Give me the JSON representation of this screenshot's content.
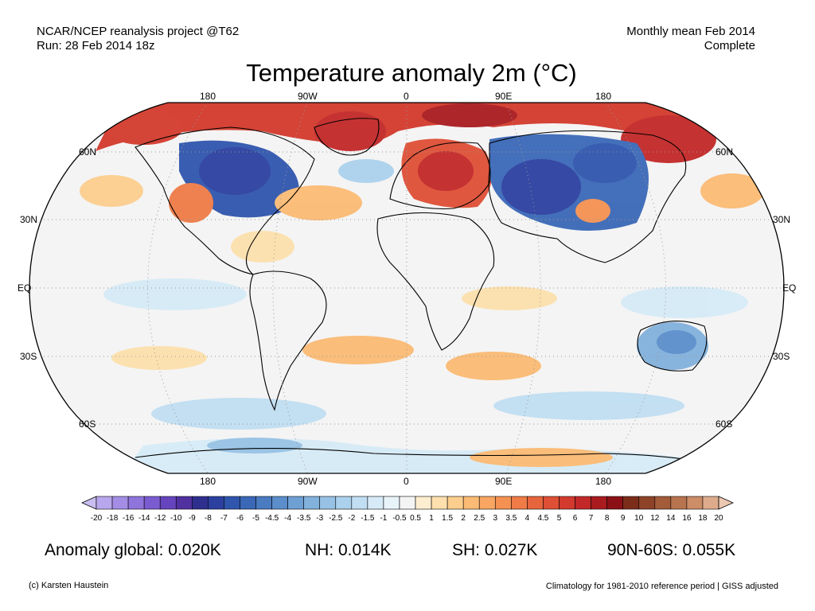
{
  "header": {
    "source_line": "NCAR/NCEP reanalysis project @T62",
    "run_line": "Run: 28 Feb 2014 18z",
    "period_line": "Monthly mean Feb 2014",
    "status_line": "Complete"
  },
  "title": "Temperature anomaly 2m (°C)",
  "map": {
    "projection": "Robinson",
    "lon_labels_top": [
      "180",
      "90W",
      "0",
      "90E",
      "180"
    ],
    "lon_labels_bottom": [
      "180",
      "90W",
      "0",
      "90E",
      "180"
    ],
    "lat_labels_left": [
      "60N",
      "30N",
      "EQ",
      "30S",
      "60S"
    ],
    "lat_labels_right": [
      "60N",
      "30N",
      "EQ",
      "30S",
      "60S"
    ],
    "ocean_color": "#f4f4f4",
    "land_border_color": "#000000",
    "anomaly_regions": [
      {
        "region": "Arctic / Greenland",
        "sign": "warm",
        "color": "#c8201e"
      },
      {
        "region": "Europe",
        "sign": "warm",
        "color": "#d2392c"
      },
      {
        "region": "Alaska / Bering",
        "sign": "warm",
        "color": "#b5241a"
      },
      {
        "region": "Central & eastern North America",
        "sign": "cold",
        "color": "#2f4ea0"
      },
      {
        "region": "Siberia / Central Asia",
        "sign": "cold",
        "color": "#2b4b9d"
      },
      {
        "region": "Western United States",
        "sign": "warm",
        "color": "#f08a52"
      },
      {
        "region": "Australia",
        "sign": "cold",
        "color": "#5d8ec9"
      },
      {
        "region": "Antarctic coast (Pacific sector)",
        "sign": "warm",
        "color": "#f5b77a"
      }
    ]
  },
  "colorbar": {
    "labels": [
      "-20",
      "-18",
      "-16",
      "-14",
      "-12",
      "-10",
      "-9",
      "-8",
      "-7",
      "-6",
      "-5",
      "-4.5",
      "-4",
      "-3.5",
      "-3",
      "-2.5",
      "-2",
      "-1.5",
      "-1",
      "-0.5",
      "0.5",
      "1",
      "1.5",
      "2",
      "2.5",
      "3",
      "3.5",
      "4",
      "4.5",
      "5",
      "6",
      "7",
      "8",
      "9",
      "10",
      "12",
      "14",
      "16",
      "18",
      "20"
    ],
    "colors": [
      "#c9bdf1",
      "#b8a7ec",
      "#a48ee5",
      "#8f74dc",
      "#7a5bd0",
      "#6644bd",
      "#50319f",
      "#2f2f8f",
      "#2c40a0",
      "#2f55ad",
      "#3a68b7",
      "#4a7bc1",
      "#5b8ecb",
      "#6ea0d4",
      "#82b1dc",
      "#97c2e5",
      "#abd1ec",
      "#c1def2",
      "#d6ebf7",
      "#e8f3fa",
      "#f4f4f4",
      "#fdeed0",
      "#fde0ad",
      "#fcce8e",
      "#fbbb74",
      "#f8a662",
      "#f49152",
      "#ef7b47",
      "#e7653d",
      "#de4f35",
      "#d23a2d",
      "#c22828",
      "#a91b1f",
      "#8c1117",
      "#7c2d1a",
      "#8e4328",
      "#a35b3a",
      "#b8744f",
      "#cc8d67",
      "#ddab8c",
      "#ecc7b1"
    ]
  },
  "stats": {
    "global": "Anomaly global: 0.020K",
    "nh": "NH: 0.014K",
    "sh": "SH: 0.027K",
    "arctic": "90N-60S: 0.055K"
  },
  "footer": {
    "credit": "(c) Karsten Haustein",
    "note": "Climatology for 1981-2010 reference period | GISS adjusted"
  }
}
